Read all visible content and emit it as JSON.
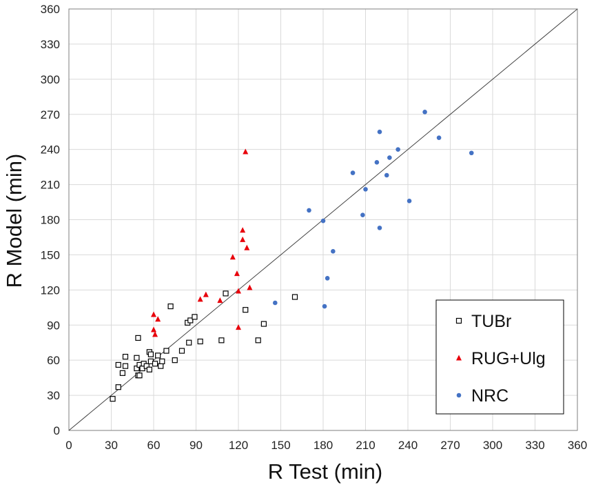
{
  "chart_data": {
    "type": "scatter",
    "xlabel": "R Test (min)",
    "ylabel": "R Model (min)",
    "xlim": [
      0,
      360
    ],
    "ylim": [
      0,
      360
    ],
    "xticks": [
      0,
      30,
      60,
      90,
      120,
      150,
      180,
      210,
      240,
      270,
      300,
      330,
      360
    ],
    "yticks": [
      0,
      30,
      60,
      90,
      120,
      150,
      180,
      210,
      240,
      270,
      300,
      330,
      360
    ],
    "grid": true,
    "legend_position": "bottom-right",
    "reference_line": {
      "from": [
        0,
        0
      ],
      "to": [
        360,
        360
      ]
    },
    "series": [
      {
        "name": "TUBr",
        "marker": "open-square",
        "color": "#000000",
        "points": [
          [
            31,
            27
          ],
          [
            35,
            37
          ],
          [
            35,
            56
          ],
          [
            38,
            49
          ],
          [
            40,
            63
          ],
          [
            40,
            55
          ],
          [
            48,
            62
          ],
          [
            48,
            53
          ],
          [
            49,
            79
          ],
          [
            49,
            47
          ],
          [
            50,
            47
          ],
          [
            50,
            56
          ],
          [
            52,
            53
          ],
          [
            53,
            57
          ],
          [
            55,
            55
          ],
          [
            57,
            52
          ],
          [
            57,
            67
          ],
          [
            58,
            65
          ],
          [
            58,
            59
          ],
          [
            61,
            57
          ],
          [
            63,
            64
          ],
          [
            65,
            55
          ],
          [
            66,
            59
          ],
          [
            69,
            68
          ],
          [
            72,
            106
          ],
          [
            75,
            60
          ],
          [
            80,
            68
          ],
          [
            84,
            92
          ],
          [
            85,
            75
          ],
          [
            86,
            94
          ],
          [
            89,
            97
          ],
          [
            93,
            76
          ],
          [
            108,
            77
          ],
          [
            111,
            117
          ],
          [
            125,
            103
          ],
          [
            134,
            77
          ],
          [
            138,
            91
          ],
          [
            160,
            114
          ]
        ]
      },
      {
        "name": "RUG+Ulg",
        "marker": "filled-triangle",
        "color": "#e8000b",
        "points": [
          [
            60,
            99
          ],
          [
            60,
            86
          ],
          [
            61,
            82
          ],
          [
            63,
            95
          ],
          [
            93,
            112
          ],
          [
            97,
            116
          ],
          [
            107,
            111
          ],
          [
            116,
            148
          ],
          [
            119,
            134
          ],
          [
            120,
            119
          ],
          [
            120,
            88
          ],
          [
            123,
            171
          ],
          [
            123,
            163
          ],
          [
            125,
            238
          ],
          [
            126,
            156
          ],
          [
            128,
            122
          ]
        ]
      },
      {
        "name": "NRC",
        "marker": "filled-circle",
        "color": "#4472c4",
        "points": [
          [
            146,
            109
          ],
          [
            170,
            188
          ],
          [
            180,
            179
          ],
          [
            181,
            106
          ],
          [
            183,
            130
          ],
          [
            187,
            153
          ],
          [
            201,
            220
          ],
          [
            208,
            184
          ],
          [
            210,
            206
          ],
          [
            218,
            229
          ],
          [
            220,
            255
          ],
          [
            220,
            173
          ],
          [
            225,
            218
          ],
          [
            227,
            233
          ],
          [
            233,
            240
          ],
          [
            241,
            196
          ],
          [
            252,
            272
          ],
          [
            262,
            250
          ],
          [
            285,
            237
          ]
        ]
      }
    ]
  }
}
